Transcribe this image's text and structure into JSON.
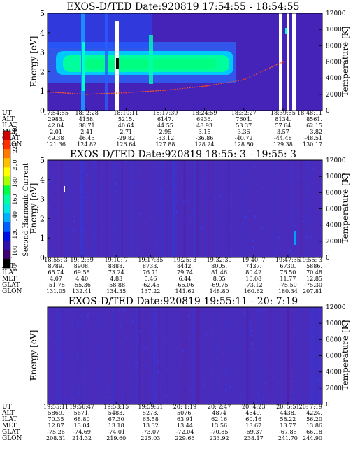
{
  "panels": [
    {
      "title": "EXOS-D/TED   Date:920819  17:54:55 - 18:54:55",
      "ylabel": "Energy [eV]",
      "y2label": "Temperature [K]",
      "times": [
        "17:54:55",
        "18: 2:28",
        "18:10:11",
        "18:17:39",
        "18:24:59",
        "18:32:27",
        "18:39:55",
        "18:48:11"
      ],
      "rows": [
        {
          "label": "UT",
          "values": [
            "17:54:55",
            "18: 2:28",
            "18:10:11",
            "18:17:39",
            "18:24:59",
            "18:32:27",
            "18:39:55",
            "18:48:11"
          ]
        },
        {
          "label": "ALT",
          "values": [
            "2983.",
            "4158.",
            "5215.",
            "6147.",
            "6936.",
            "7604.",
            "8134.",
            "8561."
          ]
        },
        {
          "label": "ILAT",
          "values": [
            "42.04",
            "38.71",
            "40.64",
            "44.55",
            "48.93",
            "53.37",
            "57.64",
            "62.15"
          ]
        },
        {
          "label": "MLT",
          "values": [
            "2.01",
            "2.41",
            "2.71",
            "2.95",
            "3.15",
            "3.36",
            "3.57",
            "3.82"
          ]
        },
        {
          "label": "GLAT",
          "values": [
            "49.38",
            "46.45",
            "-29.82",
            "-33.12",
            "-36.86",
            "-40.72",
            "-44.48",
            "-48.51"
          ]
        },
        {
          "label": "GLON",
          "values": [
            "121.36",
            "124.82",
            "126.64",
            "127.88",
            "128.24",
            "128.80",
            "129.38",
            "130.17"
          ]
        }
      ]
    },
    {
      "title": "EXOS-D/TED   Date:920819  18:55: 3 - 19:55: 3",
      "ylabel": "Energy [eV]",
      "y2label": "Temperature [K]",
      "times": [
        "18:55: 3",
        "19: 2:39",
        "19:10: 7",
        "19:17:35",
        "19:25: 3",
        "19:32:39",
        "19:40: 7",
        "19:47:35",
        "19:55: 3"
      ],
      "rows": [
        {
          "label": "UT",
          "values": [
            "18:55: 3",
            "19: 2:39",
            "19:10: 7",
            "19:17:35",
            "19:25: 3",
            "19:32:39",
            "19:40: 7",
            "19:47:35",
            "19:55: 3"
          ]
        },
        {
          "label": "ALT",
          "values": [
            "8789.",
            "8908.",
            "8888.",
            "8733.",
            "8442.",
            "8005.",
            "7437.",
            "6730.",
            "5886."
          ]
        },
        {
          "label": "ILAT",
          "values": [
            "65.74",
            "69.58",
            "73.24",
            "76.71",
            "79.74",
            "81.46",
            "80.42",
            "76.50",
            "70.48"
          ]
        },
        {
          "label": "MLT",
          "values": [
            "4.07",
            "4.40",
            "4.83",
            "5.46",
            "6.44",
            "8.05",
            "10.08",
            "11.77",
            "12.85"
          ]
        },
        {
          "label": "GLAT",
          "values": [
            "-51.78",
            "-55.36",
            "-58.88",
            "-62.45",
            "-66.06",
            "-69.75",
            "-73.12",
            "-75.50",
            "-75.30"
          ]
        },
        {
          "label": "GLON",
          "values": [
            "131.05",
            "132.41",
            "134.35",
            "137.22",
            "141.62",
            "148.80",
            "160.62",
            "180.34",
            "207.81"
          ]
        }
      ]
    },
    {
      "title": "EXOS-D/TED   Date:920819  19:55:11 - 20: 7:19",
      "ylabel": "Energy [eV]",
      "y2label": "Temperature [K]",
      "times": [
        "19:55:11",
        "19:56:47",
        "19:58:15",
        "19:59:51",
        "20: 1:19",
        "20: 2:47",
        "20: 4:23",
        "20: 5:51",
        "20: 7:19"
      ],
      "rows": [
        {
          "label": "UT",
          "values": [
            "19:55:11",
            "19:56:47",
            "19:58:15",
            "19:59:51",
            "20: 1:19",
            "20: 2:47",
            "20: 4:23",
            "20: 5:51",
            "20: 7:19"
          ]
        },
        {
          "label": "ALT",
          "values": [
            "5869.",
            "5671.",
            "5483.",
            "5273.",
            "5076.",
            "4874",
            "4649.",
            "4438.",
            "4224."
          ]
        },
        {
          "label": "ILAT",
          "values": [
            "70.35",
            "68.80",
            "67.30",
            "65.58",
            "63.91",
            "62.16",
            "60.16",
            "58.22",
            "56.20"
          ]
        },
        {
          "label": "MLT",
          "values": [
            "12.87",
            "13.04",
            "13.18",
            "13.32",
            "13.44",
            "13.56",
            "13.67",
            "13.77",
            "13.86"
          ]
        },
        {
          "label": "GLAT",
          "values": [
            "-75.26",
            "-74.69",
            "-74.01",
            "-73.07",
            "-72.04",
            "-70.85",
            "-69.37",
            "-67.85",
            "-66.18"
          ]
        },
        {
          "label": "GLON",
          "values": [
            "208.31",
            "214.32",
            "219.60",
            "225.03",
            "229.66",
            "233.92",
            "238.17",
            "241.70",
            "244.90"
          ]
        }
      ]
    }
  ],
  "colorbar": {
    "label": "Second Harmonic Current",
    "ticks": [
      "240",
      "220",
      "200",
      "180",
      "160",
      "140",
      "120",
      "100",
      "80"
    ],
    "colors": [
      "#d00000",
      "#ff3000",
      "#ff7a00",
      "#ffc000",
      "#ffff00",
      "#a8ff00",
      "#00ff40",
      "#00ffa0",
      "#00e8e0",
      "#00b0ff",
      "#0060ff",
      "#0010e0",
      "#3010a8",
      "#400070",
      "#000000"
    ]
  },
  "chart_data": [
    {
      "type": "heatmap",
      "title": "EXOS-D/TED   Date:920819  17:54:55 - 18:54:55",
      "xlabel": "UT",
      "ylabel": "Energy [eV]",
      "y2label": "Temperature [K]",
      "x_ticks": [
        "17:54:55",
        "18: 2:28",
        "18:10:11",
        "18:17:39",
        "18:24:59",
        "18:32:27",
        "18:39:55",
        "18:48:11"
      ],
      "ylim": [
        0,
        5
      ],
      "y_ticks": [
        0,
        1,
        2,
        3,
        4,
        5
      ],
      "y2lim": [
        0,
        12000
      ],
      "y2_ticks": [
        0,
        2000,
        4000,
        6000,
        8000,
        10000,
        12000
      ],
      "features": [
        {
          "kind": "intense band",
          "energy_center_eV": 2.5,
          "energy_width_eV": 0.8,
          "x_range": [
            "17:54:55",
            "18:32:27"
          ]
        },
        {
          "kind": "data gap",
          "x": "18:10:11"
        },
        {
          "kind": "data gaps",
          "x_range": [
            "18:44:00",
            "18:47:00"
          ]
        }
      ],
      "series": [
        {
          "name": "Temperature",
          "axis": "right",
          "x": [
            "17:54:55",
            "18: 2:28",
            "18:10:11",
            "18:17:39",
            "18:24:59",
            "18:32:27",
            "18:39:55"
          ],
          "values": [
            2300,
            2000,
            2200,
            2500,
            3000,
            3800,
            6000
          ]
        }
      ]
    },
    {
      "type": "heatmap",
      "title": "EXOS-D/TED   Date:920819  18:55: 3 - 19:55: 3",
      "xlabel": "UT",
      "ylabel": "Energy [eV]",
      "y2label": "Temperature [K]",
      "x_ticks": [
        "18:55: 3",
        "19: 2:39",
        "19:10: 7",
        "19:17:35",
        "19:25: 3",
        "19:32:39",
        "19:40: 7",
        "19:47:35",
        "19:55: 3"
      ],
      "ylim": [
        0,
        5
      ],
      "y_ticks": [
        0,
        1,
        2,
        3,
        4,
        5
      ],
      "y2lim": [
        0,
        12000
      ],
      "y2_ticks": [
        0,
        2000,
        4000,
        6000,
        8000,
        10000,
        12000
      ],
      "features": [
        {
          "kind": "weak background",
          "note": "mostly low current"
        }
      ]
    },
    {
      "type": "heatmap",
      "title": "EXOS-D/TED   Date:920819  19:55:11 - 20: 7:19",
      "xlabel": "UT",
      "ylabel": "Energy [eV]",
      "y2label": "Temperature [K]",
      "x_ticks": [
        "19:55:11",
        "19:56:47",
        "19:58:15",
        "19:59:51",
        "20: 1:19",
        "20: 2:47",
        "20: 4:23",
        "20: 5:51",
        "20: 7:19"
      ],
      "ylim": [
        0,
        5
      ],
      "y_ticks": [
        0,
        1,
        2,
        3,
        4,
        5
      ],
      "y2lim": [
        0,
        12000
      ],
      "y2_ticks": [
        0,
        2000,
        4000,
        6000,
        8000,
        10000,
        12000
      ],
      "features": [
        {
          "kind": "weak background",
          "note": "mostly low current"
        }
      ]
    }
  ]
}
